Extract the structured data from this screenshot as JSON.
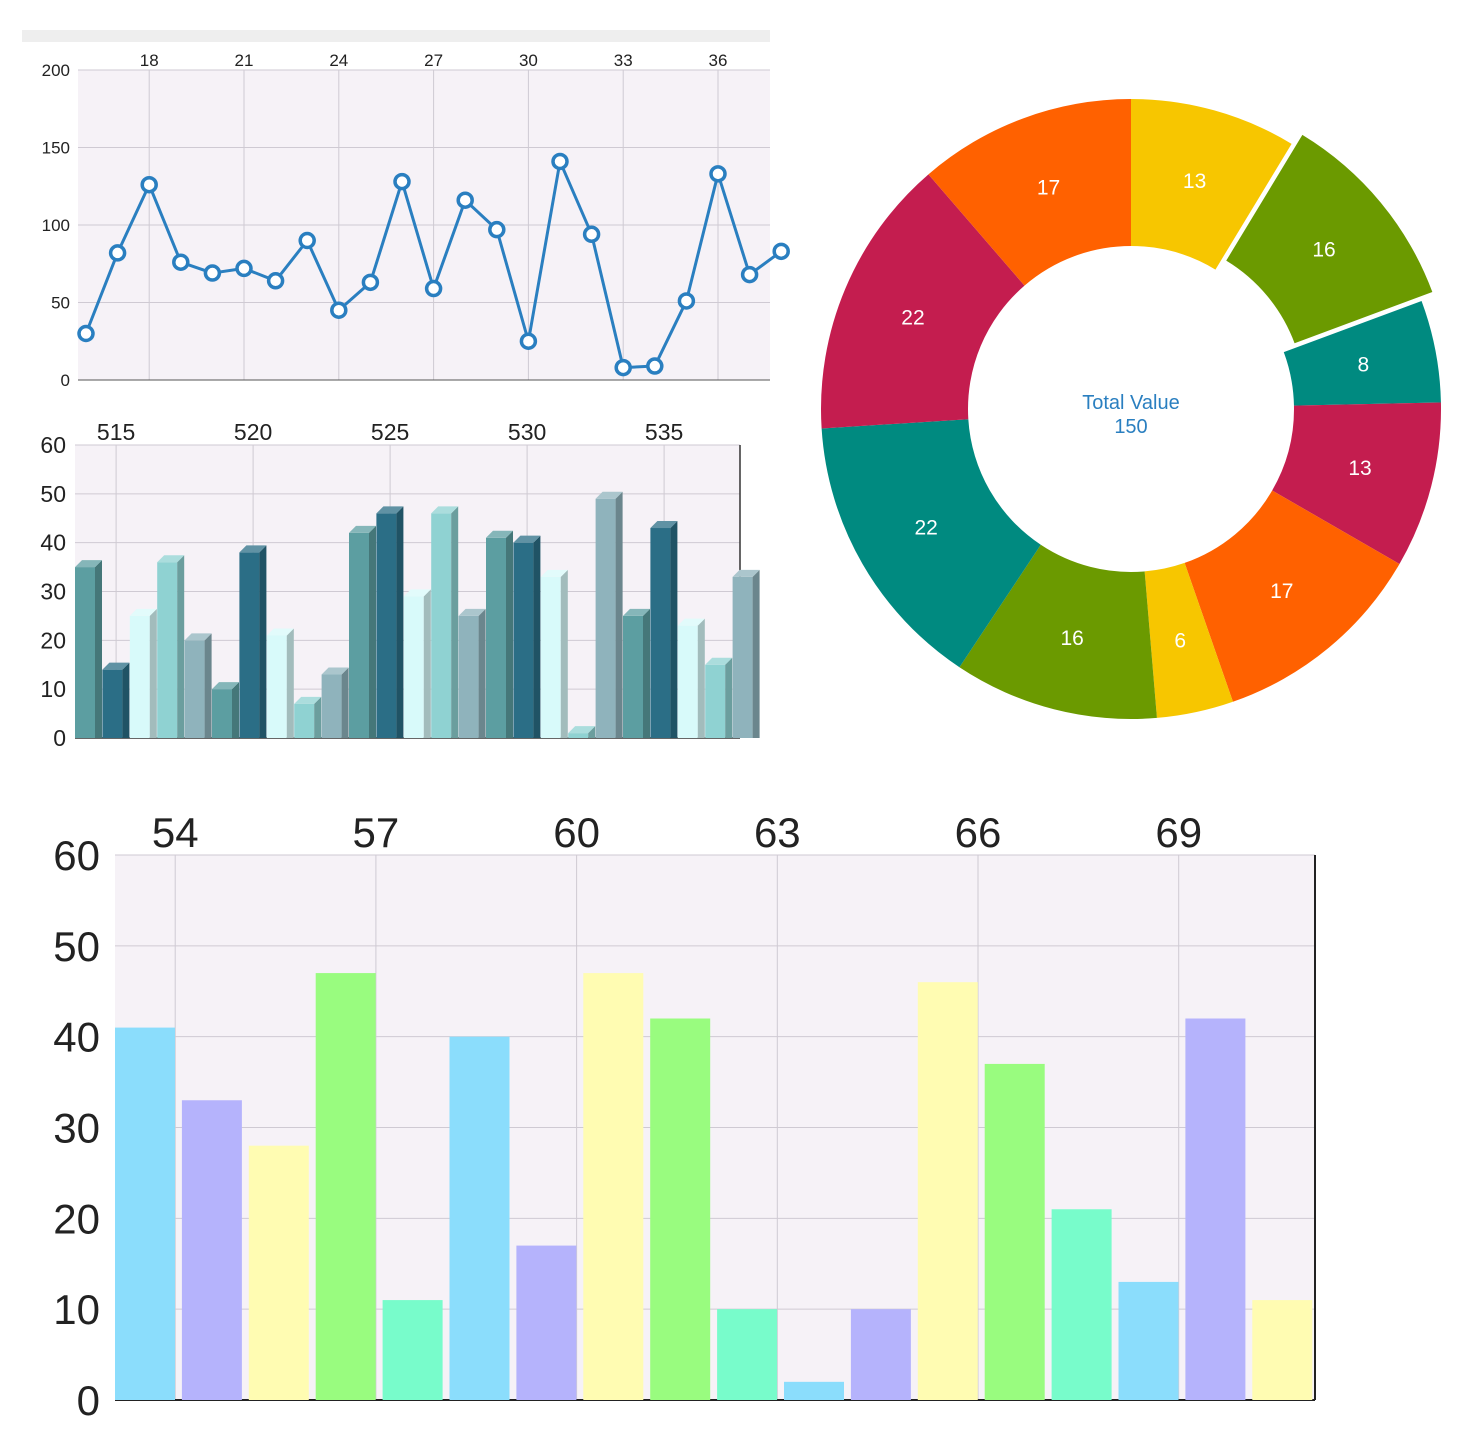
{
  "charts": {
    "line": {
      "type": "line",
      "x_ticks": [
        "18",
        "21",
        "24",
        "27",
        "30",
        "33",
        "36"
      ],
      "y_ticks": [
        "200",
        "150",
        "100",
        "50",
        "0"
      ],
      "ylim": [
        0,
        200
      ],
      "x": [
        16,
        17,
        18,
        19,
        20,
        21,
        22,
        23,
        24,
        25,
        26,
        27,
        28,
        29,
        30,
        31,
        32,
        33,
        34,
        35,
        36,
        37,
        38
      ],
      "values": [
        30,
        82,
        126,
        76,
        69,
        72,
        64,
        90,
        45,
        63,
        128,
        59,
        116,
        97,
        25,
        141,
        94,
        8,
        9,
        51,
        133,
        68,
        83
      ],
      "line_color": "#2a7fc0",
      "background": "#f6f2f7"
    },
    "bar3d": {
      "type": "bar",
      "x_ticks": [
        "515",
        "520",
        "525",
        "530",
        "535"
      ],
      "y_ticks": [
        "60",
        "50",
        "40",
        "30",
        "20",
        "10",
        "0"
      ],
      "ylim": [
        0,
        60
      ],
      "x_start": 514,
      "values": [
        35,
        14,
        25,
        36,
        20,
        10,
        38,
        21,
        7,
        13,
        42,
        46,
        29,
        46,
        25,
        41,
        40,
        33,
        1,
        49,
        25,
        43,
        23,
        15,
        33
      ],
      "palette": [
        "#5c9ea1",
        "#2b6e86",
        "#d8fafa",
        "#8fd2d2",
        "#8fb3bc"
      ],
      "background": "#f6f2f7"
    },
    "donut": {
      "type": "pie",
      "center_label": "Total Value",
      "center_value": "150",
      "slices": [
        {
          "label": "13",
          "value": 13,
          "color": "#f7c600",
          "exploded": false
        },
        {
          "label": "16",
          "value": 16,
          "color": "#6b9a00",
          "exploded": true
        },
        {
          "label": "8",
          "value": 8,
          "color": "#008a80",
          "exploded": false
        },
        {
          "label": "13",
          "value": 13,
          "color": "#c41d4f",
          "exploded": false
        },
        {
          "label": "17",
          "value": 17,
          "color": "#ff6100",
          "exploded": false
        },
        {
          "label": "6",
          "value": 6,
          "color": "#f7c600",
          "exploded": false
        },
        {
          "label": "16",
          "value": 16,
          "color": "#6b9a00",
          "exploded": false
        },
        {
          "label": "22",
          "value": 22,
          "color": "#008a80",
          "exploded": false
        },
        {
          "label": "22",
          "value": 22,
          "color": "#c41d4f",
          "exploded": false
        },
        {
          "label": "17",
          "value": 17,
          "color": "#ff6100",
          "exploded": false
        }
      ],
      "center_text_color": "#2a7fc0"
    },
    "bar": {
      "type": "bar",
      "x_ticks": [
        "54",
        "57",
        "60",
        "63",
        "66",
        "69"
      ],
      "y_ticks": [
        "60",
        "50",
        "40",
        "30",
        "20",
        "10",
        "0"
      ],
      "ylim": [
        0,
        60
      ],
      "x_start": 54,
      "values": [
        41,
        33,
        28,
        47,
        11,
        40,
        17,
        47,
        42,
        10,
        2,
        10,
        46,
        37,
        21,
        13,
        42,
        11
      ],
      "palette": [
        "#8bddfc",
        "#b5b3fc",
        "#fffcb2",
        "#99fc7f",
        "#78fccb"
      ],
      "background": "#f6f2f7"
    }
  }
}
